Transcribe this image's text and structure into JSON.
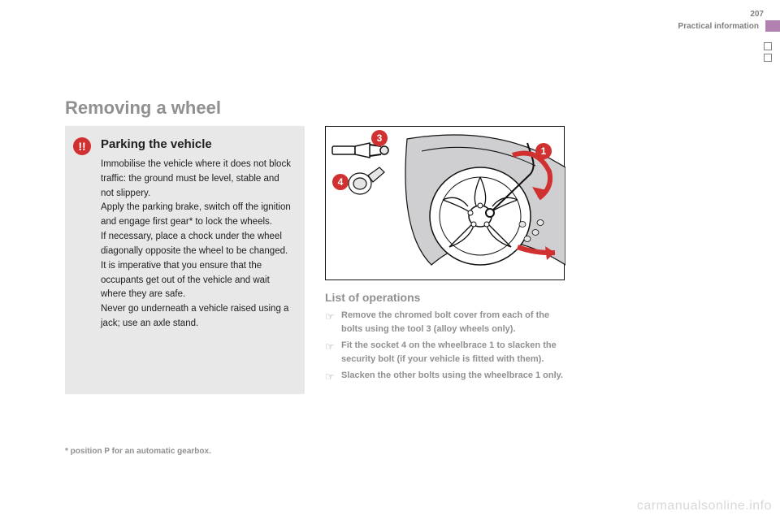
{
  "header": {
    "page_number": "207",
    "practical_label": "Practical information",
    "tab_color": "#b080b0"
  },
  "section_title": "Removing a wheel",
  "grey_box": {
    "warn_glyph": "!!",
    "title": "Parking the vehicle",
    "body": "Immobilise the vehicle where it does not block traffic: the ground must be level, stable and not slippery.\nApply the parking brake, switch off the ignition and engage first gear* to lock the wheels.\nIf necessary, place a chock under the wheel diagonally opposite the wheel to be changed.\nIt is imperative that you ensure that the occupants get out of the vehicle and wait where they are safe.\nNever go underneath a vehicle raised using a jack; use an axle stand.",
    "background": "#e8e8e8"
  },
  "diagram": {
    "labels": {
      "1": "1",
      "3": "3",
      "4": "4"
    },
    "label_bg": "#d03030",
    "label_fg": "#ffffff",
    "wheel_arch_fill": "#cfcfd1",
    "wheel_rim_stroke": "#101010",
    "arrow_fill": "#d03030",
    "tool_stroke": "#101010"
  },
  "operations": {
    "title": "List of operations",
    "items": [
      "Remove the chromed bolt cover from each of the bolts using the tool 3 (alloy wheels only).",
      "Fit the socket 4 on the wheelbrace 1 to slacken the security bolt (if your vehicle is fitted with them).",
      "Slacken the other bolts using the wheelbrace 1 only."
    ],
    "marker": "☞"
  },
  "footnote": "* position P for an automatic gearbox.",
  "watermark": "carmanualsonline.info"
}
